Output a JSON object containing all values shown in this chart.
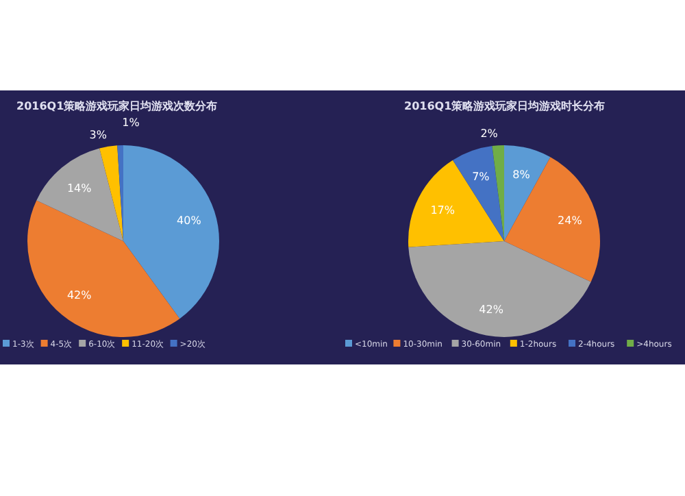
{
  "chart_data": [
    {
      "type": "pie",
      "title": "2016Q1策略游戏玩家日均游戏次数分布",
      "categories": [
        "1-3次",
        "4-5次",
        "6-10次",
        "11-20次",
        ">20次"
      ],
      "values": [
        40,
        42,
        14,
        3,
        1
      ],
      "colors": [
        "#5b9bd5",
        "#ed7d31",
        "#a5a5a5",
        "#ffc000",
        "#4472c4"
      ],
      "value_labels": [
        "40%",
        "42%",
        "14%",
        "3%",
        "1%"
      ],
      "legend": "bottom"
    },
    {
      "type": "pie",
      "title": "2016Q1策略游戏玩家日均游戏时长分布",
      "categories": [
        "<10min",
        "10-30min",
        "30-60min",
        "1-2hours",
        "2-4hours",
        ">4hours"
      ],
      "values": [
        8,
        24,
        42,
        17,
        7,
        2
      ],
      "colors": [
        "#5b9bd5",
        "#ed7d31",
        "#a5a5a5",
        "#ffc000",
        "#4472c4",
        "#70ad47"
      ],
      "value_labels": [
        "8%",
        "24%",
        "42%",
        "17%",
        "7%",
        "2%"
      ],
      "legend": "bottom"
    }
  ]
}
